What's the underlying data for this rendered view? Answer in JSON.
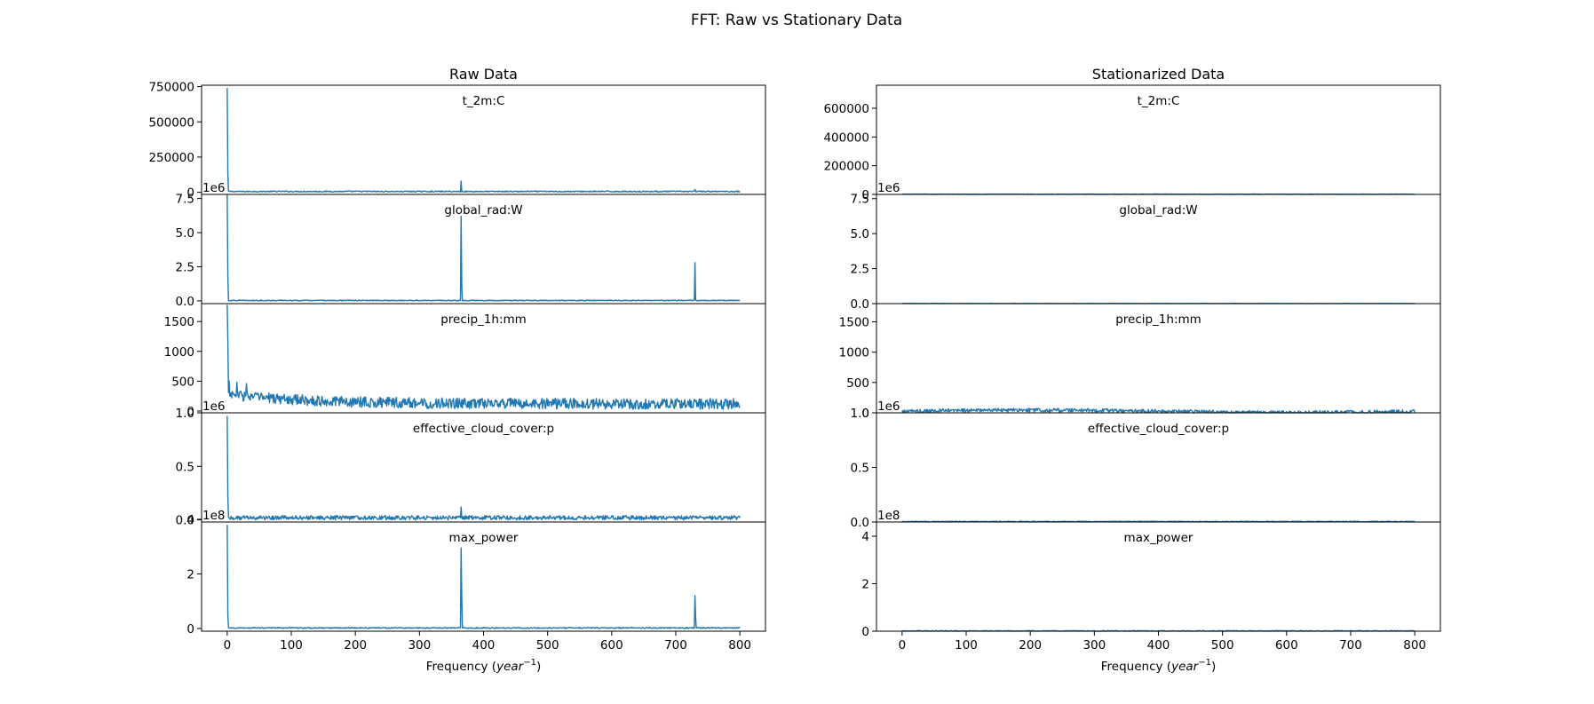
{
  "figure": {
    "title": "FFT: Raw vs Stationary Data",
    "x_label_text": "Frequency (",
    "x_label_var": "year",
    "x_label_exp": "−1",
    "x_label_close": ")"
  },
  "colors": {
    "series": "#1f77b4",
    "axes": "#000000"
  },
  "chart_data": [
    {
      "type": "line",
      "title": "Raw Data",
      "xlabel": "Frequency (year^-1)",
      "xlim": [
        -40,
        840
      ],
      "xticks": [
        "0",
        "100",
        "200",
        "300",
        "400",
        "500",
        "600",
        "700",
        "800"
      ],
      "grid": false,
      "subplots": [
        {
          "series": "t_2m:C",
          "offset_text": "",
          "ylim": [
            -15000,
            760000
          ],
          "yticks": [
            0,
            250000,
            500000,
            750000
          ],
          "ytick_labels": [
            "0",
            "250000",
            "500000",
            "750000"
          ],
          "baseline": 6000,
          "noise": 4000,
          "peaks": [
            [
              0,
              740000
            ],
            [
              1,
              130000
            ],
            [
              365,
              80000
            ],
            [
              730,
              20000
            ]
          ]
        },
        {
          "series": "global_rad:W",
          "offset_text": "1e6",
          "ylim": [
            -0.2,
            7.8
          ],
          "yticks": [
            0,
            2.5,
            5,
            7.5
          ],
          "ytick_labels": [
            "0.0",
            "2.5",
            "5.0",
            "7.5"
          ],
          "baseline": 0.03,
          "noise": 0.03,
          "peaks": [
            [
              0,
              7.8
            ],
            [
              1,
              1.8
            ],
            [
              365,
              6.2
            ],
            [
              366,
              1.2
            ],
            [
              730,
              2.8
            ]
          ]
        },
        {
          "series": "precip_1h:mm",
          "offset_text": "",
          "ylim": [
            -30,
            1800
          ],
          "yticks": [
            0,
            500,
            1000,
            1500
          ],
          "ytick_labels": [
            "0",
            "500",
            "1000",
            "1500"
          ],
          "baseline": 120,
          "noise": 90,
          "peaks": [
            [
              0,
              1780
            ],
            [
              1,
              1200
            ],
            [
              3,
              500
            ],
            [
              15,
              480
            ],
            [
              30,
              460
            ]
          ]
        },
        {
          "series": "effective_cloud_cover:p",
          "offset_text": "1e6",
          "ylim": [
            -0.02,
            1.0
          ],
          "yticks": [
            0,
            0.5,
            1.0
          ],
          "ytick_labels": [
            "0.0",
            "0.5",
            "1.0"
          ],
          "baseline": 0.02,
          "noise": 0.02,
          "peaks": [
            [
              0,
              0.97
            ],
            [
              1,
              0.22
            ],
            [
              365,
              0.12
            ],
            [
              730,
              0.03
            ]
          ]
        },
        {
          "series": "max_power",
          "offset_text": "1e8",
          "ylim": [
            -0.1,
            3.9
          ],
          "yticks": [
            0,
            2,
            4
          ],
          "ytick_labels": [
            "0",
            "2",
            "4"
          ],
          "baseline": 0.02,
          "noise": 0.02,
          "peaks": [
            [
              0,
              3.8
            ],
            [
              1,
              0.5
            ],
            [
              365,
              2.95
            ],
            [
              366,
              1.2
            ],
            [
              730,
              1.2
            ],
            [
              731,
              0.4
            ]
          ]
        }
      ]
    },
    {
      "type": "line",
      "title": "Stationarized Data",
      "xlabel": "Frequency (year^-1)",
      "xlim": [
        -40,
        840
      ],
      "xticks": [
        "0",
        "100",
        "200",
        "300",
        "400",
        "500",
        "600",
        "700",
        "800"
      ],
      "grid": false,
      "subplots": [
        {
          "series": "t_2m:C",
          "offset_text": "",
          "ylim": [
            0,
            760000
          ],
          "yticks": [
            0,
            200000,
            400000,
            600000
          ],
          "ytick_labels": [
            "0",
            "200000",
            "400000",
            "600000"
          ],
          "baseline": 1500,
          "noise": 1500,
          "peaks": []
        },
        {
          "series": "global_rad:W",
          "offset_text": "1e6",
          "ylim": [
            0,
            7.8
          ],
          "yticks": [
            0,
            2.5,
            5,
            7.5
          ],
          "ytick_labels": [
            "0.0",
            "2.5",
            "5.0",
            "7.5"
          ],
          "baseline": 0.01,
          "noise": 0.01,
          "peaks": []
        },
        {
          "series": "precip_1h:mm",
          "offset_text": "",
          "ylim": [
            0,
            1800
          ],
          "yticks": [
            0,
            500,
            1000,
            1500
          ],
          "ytick_labels": [
            "0",
            "500",
            "1000",
            "1500"
          ],
          "baseline": 25,
          "noise": 30,
          "peaks": []
        },
        {
          "series": "effective_cloud_cover:p",
          "offset_text": "1e6",
          "ylim": [
            0,
            1.0
          ],
          "yticks": [
            0,
            0.5,
            1.0
          ],
          "ytick_labels": [
            "0.0",
            "0.5",
            "1.0"
          ],
          "baseline": 0.004,
          "noise": 0.004,
          "peaks": []
        },
        {
          "series": "max_power",
          "offset_text": "1e8",
          "ylim": [
            0,
            4.6
          ],
          "yticks": [
            0,
            2,
            4
          ],
          "ytick_labels": [
            "0",
            "2",
            "4"
          ],
          "baseline": 0.01,
          "noise": 0.02,
          "peaks": []
        }
      ]
    }
  ]
}
